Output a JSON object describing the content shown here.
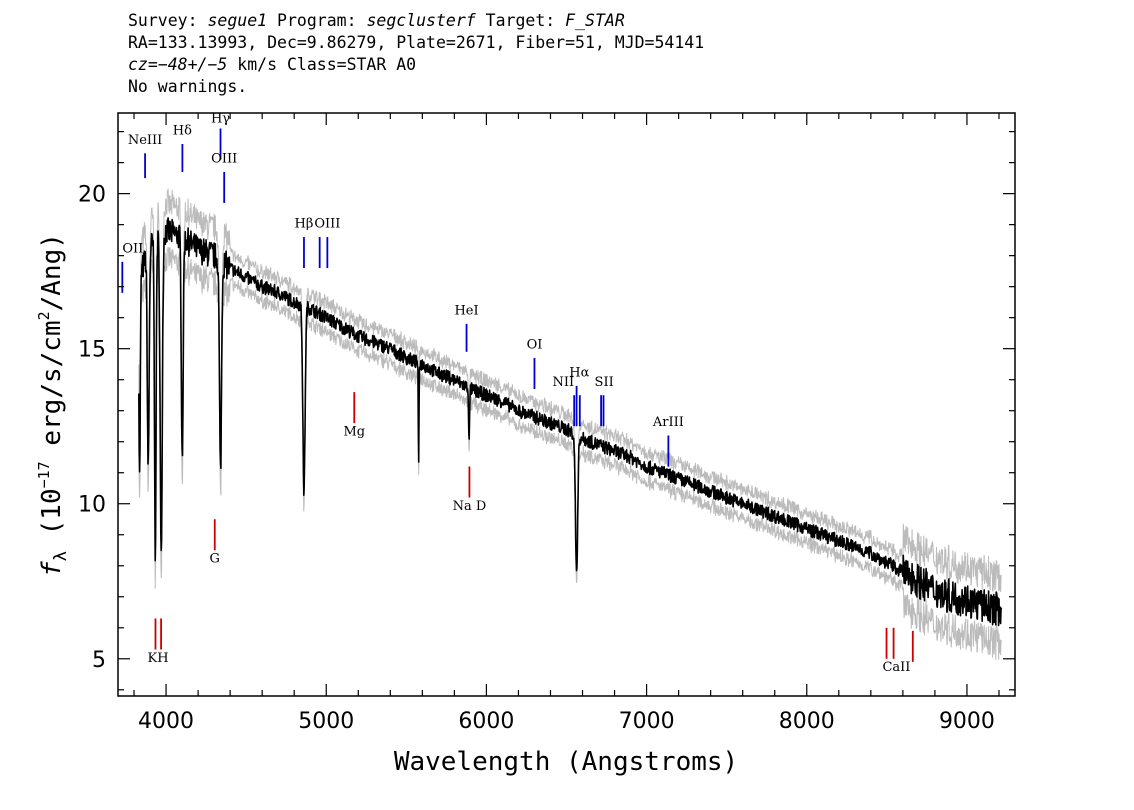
{
  "header": {
    "survey_label": "Survey:",
    "survey": "segue1",
    "program_label": "Program:",
    "program": "segclusterf",
    "target_label": "Target:",
    "target": "F_STAR",
    "line2": "RA=133.13993, Dec=9.86279, Plate=2671, Fiber=51, MJD=54141",
    "cz_label": "cz=",
    "cz_value": "−48+/−5",
    "cz_rest": " km/s Class=STAR A0",
    "warnings": "No warnings."
  },
  "chart_data": {
    "type": "line",
    "xlabel": "Wavelength (Angstroms)",
    "ylabel_main": "f",
    "ylabel_sub": "λ",
    "ylabel_pre": " (10",
    "ylabel_exp": "−17",
    "ylabel_post": " erg/s/cm",
    "ylabel_exp2": "2",
    "ylabel_end": "/Ang)",
    "xlim": [
      3700,
      9300
    ],
    "ylim": [
      3.8,
      22.6
    ],
    "x_ticks": [
      4000,
      5000,
      6000,
      7000,
      8000,
      9000
    ],
    "y_ticks": [
      5,
      10,
      15,
      20
    ],
    "series": [
      {
        "role": "flux",
        "color": "#000000",
        "continuum": [
          [
            3800,
            16.8
          ],
          [
            3900,
            18.3
          ],
          [
            4000,
            18.8
          ],
          [
            4100,
            18.6
          ],
          [
            4200,
            18.2
          ],
          [
            4300,
            18.0
          ],
          [
            4400,
            17.6
          ],
          [
            4500,
            17.3
          ],
          [
            4600,
            17.0
          ],
          [
            4700,
            16.8
          ],
          [
            4800,
            16.5
          ],
          [
            4900,
            16.3
          ],
          [
            5000,
            16.0
          ],
          [
            5100,
            15.7
          ],
          [
            5200,
            15.4
          ],
          [
            5300,
            15.2
          ],
          [
            5400,
            15.0
          ],
          [
            5500,
            14.7
          ],
          [
            5600,
            14.5
          ],
          [
            5700,
            14.2
          ],
          [
            5800,
            14.0
          ],
          [
            5900,
            13.7
          ],
          [
            6000,
            13.5
          ],
          [
            6100,
            13.3
          ],
          [
            6200,
            13.0
          ],
          [
            6300,
            12.8
          ],
          [
            6400,
            12.6
          ],
          [
            6500,
            12.4
          ],
          [
            6600,
            12.1
          ],
          [
            6700,
            11.9
          ],
          [
            6800,
            11.7
          ],
          [
            6900,
            11.5
          ],
          [
            7000,
            11.2
          ],
          [
            7100,
            11.0
          ],
          [
            7200,
            10.8
          ],
          [
            7300,
            10.6
          ],
          [
            7400,
            10.4
          ],
          [
            7500,
            10.2
          ],
          [
            7600,
            10.0
          ],
          [
            7700,
            9.8
          ],
          [
            7800,
            9.6
          ],
          [
            7900,
            9.4
          ],
          [
            8000,
            9.2
          ],
          [
            8100,
            9.0
          ],
          [
            8200,
            8.8
          ],
          [
            8300,
            8.6
          ],
          [
            8400,
            8.4
          ],
          [
            8500,
            8.1
          ],
          [
            8600,
            7.8
          ],
          [
            8700,
            7.5
          ],
          [
            8800,
            7.2
          ],
          [
            8900,
            7.0
          ],
          [
            9000,
            6.9
          ],
          [
            9100,
            6.7
          ],
          [
            9200,
            6.6
          ]
        ],
        "absorption": [
          {
            "x": 3835,
            "depth": 6.5,
            "width": 6
          },
          {
            "x": 3889,
            "depth": 7.0,
            "width": 8
          },
          {
            "x": 3933,
            "depth": 10.0,
            "width": 7
          },
          {
            "x": 3970,
            "depth": 10.5,
            "width": 9
          },
          {
            "x": 4101,
            "depth": 7.0,
            "width": 8
          },
          {
            "x": 4340,
            "depth": 6.8,
            "width": 9
          },
          {
            "x": 4861,
            "depth": 6.0,
            "width": 10
          },
          {
            "x": 5577,
            "depth": 3.5,
            "width": 3
          },
          {
            "x": 5892,
            "depth": 1.8,
            "width": 4
          },
          {
            "x": 6563,
            "depth": 4.4,
            "width": 10
          }
        ]
      },
      {
        "role": "error",
        "color": "#bbbbbb"
      }
    ],
    "emission_lines": [
      {
        "label": "NeIII",
        "x": 3869,
        "color": "#0000cc",
        "y_top": 21.3,
        "y_bot": 20.5,
        "label_y": 21.6
      },
      {
        "label": "Hδ",
        "x": 4102,
        "color": "#0000cc",
        "y_top": 21.6,
        "y_bot": 20.7,
        "label_y": 21.9
      },
      {
        "label": "Hγ",
        "x": 4340,
        "color": "#0000cc",
        "y_top": 22.1,
        "y_bot": 21.1,
        "label_y": 22.3
      },
      {
        "label": "OIII",
        "x": 4363,
        "color": "#0000cc",
        "y_top": 20.7,
        "y_bot": 19.7,
        "label_y": 21.0
      },
      {
        "label": "Hβ",
        "x": 4861,
        "color": "#0000cc",
        "y_top": 18.6,
        "y_bot": 17.6,
        "label_y": 18.9
      },
      {
        "label": "OIII",
        "x": 4959,
        "color": "#0000cc",
        "y_top": 18.6,
        "y_bot": 17.6,
        "label_y": 18.9,
        "label_x": 5007
      },
      {
        "label": "",
        "x": 5007,
        "color": "#0000cc",
        "y_top": 18.6,
        "y_bot": 17.6
      },
      {
        "label": "OII",
        "x": 3727,
        "color": "#0000cc",
        "y_top": 17.8,
        "y_bot": 16.8,
        "label_y": 18.1
      },
      {
        "label": "HeI",
        "x": 5876,
        "color": "#0000cc",
        "y_top": 15.8,
        "y_bot": 14.9,
        "label_y": 16.1
      },
      {
        "label": "OI",
        "x": 6300,
        "color": "#0000cc",
        "y_top": 14.7,
        "y_bot": 13.7,
        "label_y": 15.0
      },
      {
        "label": "NII",
        "x": 6548,
        "color": "#0000cc",
        "y_top": 13.5,
        "y_bot": 12.5,
        "label_y": 13.8,
        "label_x": 6480
      },
      {
        "label": "Hα",
        "x": 6563,
        "color": "#0000cc",
        "y_top": 13.8,
        "y_bot": 12.5,
        "label_y": 14.1,
        "label_x": 6580
      },
      {
        "label": "",
        "x": 6583,
        "color": "#0000cc",
        "y_top": 13.5,
        "y_bot": 12.5
      },
      {
        "label": "SII",
        "x": 6716,
        "color": "#0000cc",
        "y_top": 13.5,
        "y_bot": 12.5,
        "label_y": 13.8,
        "label_x": 6735
      },
      {
        "label": "",
        "x": 6731,
        "color": "#0000cc",
        "y_top": 13.5,
        "y_bot": 12.5
      },
      {
        "label": "ArIII",
        "x": 7136,
        "color": "#0000cc",
        "y_top": 12.2,
        "y_bot": 11.2,
        "label_y": 12.5
      }
    ],
    "absorption_lines": [
      {
        "label": "KH",
        "x": 3934,
        "color": "#cc0000",
        "y_top": 6.3,
        "y_bot": 5.3,
        "label_y": 4.9,
        "label_x": 3950
      },
      {
        "label": "",
        "x": 3969,
        "color": "#cc0000",
        "y_top": 6.3,
        "y_bot": 5.3
      },
      {
        "label": "G",
        "x": 4304,
        "color": "#cc0000",
        "y_top": 9.5,
        "y_bot": 8.5,
        "label_y": 8.1
      },
      {
        "label": "Mg",
        "x": 5175,
        "color": "#cc0000",
        "y_top": 13.6,
        "y_bot": 12.6,
        "label_y": 12.2
      },
      {
        "label": "Na D",
        "x": 5894,
        "color": "#cc0000",
        "y_top": 11.2,
        "y_bot": 10.2,
        "label_y": 9.8
      },
      {
        "label": "CaII",
        "x": 8498,
        "color": "#cc0000",
        "y_top": 6.0,
        "y_bot": 5.0,
        "label_y": 4.6,
        "label_x": 8560
      },
      {
        "label": "",
        "x": 8542,
        "color": "#cc0000",
        "y_top": 6.0,
        "y_bot": 5.0
      },
      {
        "label": "",
        "x": 8662,
        "color": "#cc0000",
        "y_top": 5.9,
        "y_bot": 4.9
      }
    ]
  }
}
